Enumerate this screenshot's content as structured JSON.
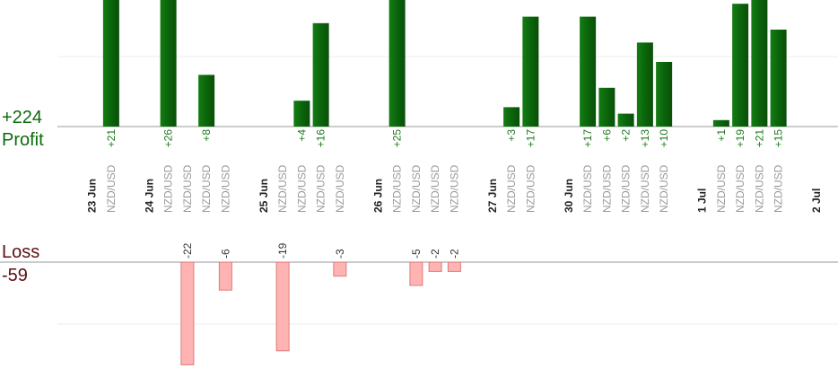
{
  "chart_data": {
    "type": "bar",
    "symbol": "NZD/USD",
    "profit": {
      "label": "Profit",
      "total": "+224",
      "color": "#0b6b0b",
      "ylim": [
        0,
        26
      ]
    },
    "loss": {
      "label": "Loss",
      "total": "-59",
      "color": "#5a1010",
      "ylim": [
        -22,
        0
      ]
    },
    "bar_colors": {
      "profit": "#0b650b",
      "loss": "#ffb3b3",
      "loss_border": "#e07a7a"
    },
    "slots": [
      {
        "type": "date",
        "label": "23 Jun"
      },
      {
        "type": "trade",
        "value": 21,
        "label": "+21"
      },
      {
        "type": "gap"
      },
      {
        "type": "date",
        "label": "24 Jun"
      },
      {
        "type": "trade",
        "value": 26,
        "label": "+26"
      },
      {
        "type": "trade",
        "value": -22,
        "label": "-22"
      },
      {
        "type": "trade",
        "value": 8,
        "label": "+8"
      },
      {
        "type": "trade",
        "value": -6,
        "label": "-6"
      },
      {
        "type": "gap"
      },
      {
        "type": "date",
        "label": "25 Jun"
      },
      {
        "type": "trade",
        "value": -19,
        "label": "-19"
      },
      {
        "type": "trade",
        "value": 4,
        "label": "+4"
      },
      {
        "type": "trade",
        "value": 16,
        "label": "+16"
      },
      {
        "type": "trade",
        "value": -3,
        "label": "-3"
      },
      {
        "type": "gap"
      },
      {
        "type": "date",
        "label": "26 Jun"
      },
      {
        "type": "trade",
        "value": 25,
        "label": "+25"
      },
      {
        "type": "trade",
        "value": -5,
        "label": "-5"
      },
      {
        "type": "trade",
        "value": -2,
        "label": "-2"
      },
      {
        "type": "trade",
        "value": -2,
        "label": "-2"
      },
      {
        "type": "gap"
      },
      {
        "type": "date",
        "label": "27 Jun"
      },
      {
        "type": "trade",
        "value": 3,
        "label": "+3"
      },
      {
        "type": "trade",
        "value": 17,
        "label": "+17"
      },
      {
        "type": "gap"
      },
      {
        "type": "date",
        "label": "30 Jun"
      },
      {
        "type": "trade",
        "value": 17,
        "label": "+17"
      },
      {
        "type": "trade",
        "value": 6,
        "label": "+6"
      },
      {
        "type": "trade",
        "value": 2,
        "label": "+2"
      },
      {
        "type": "trade",
        "value": 13,
        "label": "+13"
      },
      {
        "type": "trade",
        "value": 10,
        "label": "+10"
      },
      {
        "type": "gap"
      },
      {
        "type": "date",
        "label": "1 Jul"
      },
      {
        "type": "trade",
        "value": 1,
        "label": "+1"
      },
      {
        "type": "trade",
        "value": 19,
        "label": "+19"
      },
      {
        "type": "trade",
        "value": 21,
        "label": "+21"
      },
      {
        "type": "trade",
        "value": 15,
        "label": "+15"
      },
      {
        "type": "gap"
      },
      {
        "type": "date",
        "label": "2 Jul"
      }
    ]
  }
}
